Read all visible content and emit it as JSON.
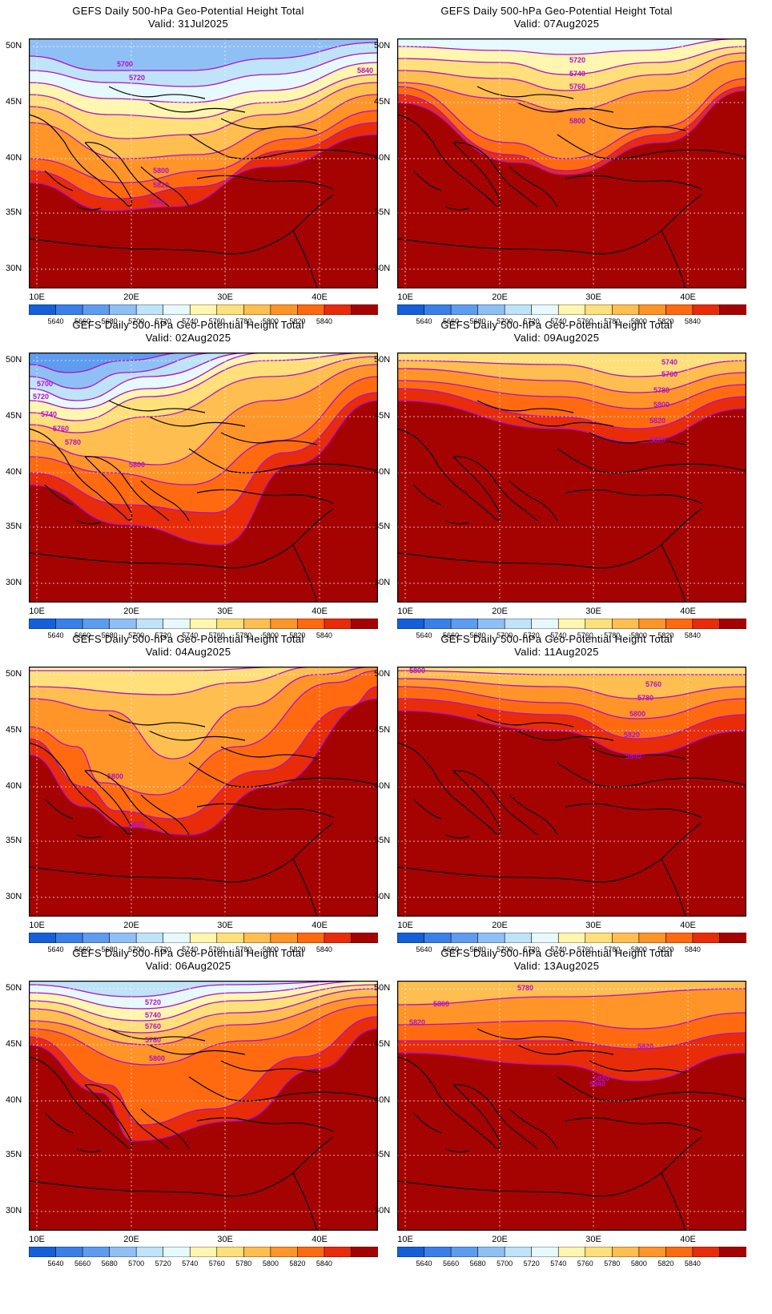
{
  "panels": [
    {
      "title": "GEFS Daily 500-hPa Geo-Potential Height Total",
      "valid": "Valid: 31Jul2025",
      "contour_labels": [
        "5700",
        "5720",
        "5800",
        "5820",
        "5840",
        "5840"
      ],
      "scenario": 0
    },
    {
      "title": "GEFS Daily 500-hPa Geo-Potential Height Total",
      "valid": "Valid: 07Aug2025",
      "contour_labels": [
        "5720",
        "5740",
        "5760",
        "5800"
      ],
      "scenario": 1
    },
    {
      "title": "GEFS Daily 500-hPa Geo-Potential Height Total",
      "valid": "Valid: 02Aug2025",
      "contour_labels": [
        "5700",
        "5720",
        "5740",
        "5760",
        "5780",
        "5800"
      ],
      "scenario": 2
    },
    {
      "title": "GEFS Daily 500-hPa Geo-Potential Height Total",
      "valid": "Valid: 09Aug2025",
      "contour_labels": [
        "5740",
        "5760",
        "5780",
        "5800",
        "5820",
        "5820"
      ],
      "scenario": 3
    },
    {
      "title": "GEFS Daily 500-hPa Geo-Potential Height Total",
      "valid": "Valid: 04Aug2025",
      "contour_labels": [
        "5800",
        "5820"
      ],
      "scenario": 4
    },
    {
      "title": "GEFS Daily 500-hPa Geo-Potential Height Total",
      "valid": "Valid: 11Aug2025",
      "contour_labels": [
        "5800",
        "5760",
        "5780",
        "5800",
        "5820",
        "5840"
      ],
      "scenario": 5
    },
    {
      "title": "GEFS Daily 500-hPa Geo-Potential Height Total",
      "valid": "Valid: 06Aug2025",
      "contour_labels": [
        "5720",
        "5740",
        "5760",
        "5780",
        "5800"
      ],
      "scenario": 6
    },
    {
      "title": "GEFS Daily 500-hPa Geo-Potential Height Total",
      "valid": "Valid: 13Aug2025",
      "contour_labels": [
        "5780",
        "5800",
        "5820",
        "5820",
        "5820",
        "5840"
      ],
      "scenario": 7
    }
  ],
  "lat_labels": [
    "50N",
    "45N",
    "40N",
    "35N",
    "30N"
  ],
  "lon_labels": [
    "10E",
    "20E",
    "30E",
    "40E"
  ],
  "colorbar": {
    "labels": [
      "5640",
      "5660",
      "5680",
      "5700",
      "5720",
      "5740",
      "5760",
      "5780",
      "5800",
      "5820",
      "5840"
    ],
    "colors": [
      "#1560d8",
      "#3a80e8",
      "#5e9cf0",
      "#8fc0f5",
      "#bfe3f8",
      "#e6f9ff",
      "#fff6b0",
      "#ffe07a",
      "#ffbe50",
      "#ff9428",
      "#ff6a10",
      "#e82c0a",
      "#a50202"
    ]
  }
}
